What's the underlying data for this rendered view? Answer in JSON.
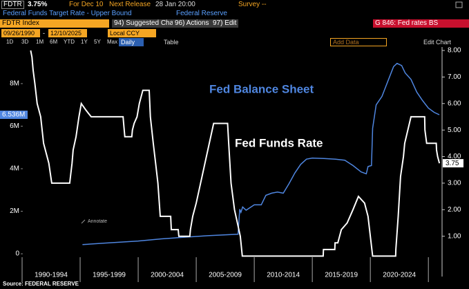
{
  "header": {
    "ticker": "FDTR",
    "price": "3.75%",
    "info": "For Dec 10",
    "next_release": "Next Release",
    "release_date": "28 Jan 20:00",
    "survey": "Survey --",
    "description": "Federal Funds Target Rate - Upper Bound",
    "source_name": "Federal Reserve"
  },
  "toolbar": {
    "security": "FDTR Index",
    "buttons": [
      "94) Suggested Charts",
      "96) Actions",
      "97) Edit"
    ],
    "chart_id": "G 846: Fed rates BS",
    "start_date": "09/26/1990",
    "end_date": "12/10/2025",
    "currency": "Local CCY",
    "periods": [
      "1D",
      "3D",
      "1M",
      "6M",
      "YTD",
      "1Y",
      "5Y",
      "Max"
    ],
    "frequency": "Daily",
    "table": "Table",
    "add_data": "Add Data",
    "edit_chart": "Edit Chart"
  },
  "chart_data": {
    "type": "line",
    "annotations": [
      "Fed Balance Sheet",
      "Fed Funds Rate",
      "Annotate"
    ],
    "xlim": [
      1990,
      2026
    ],
    "xticks": [
      1990,
      1995,
      2000,
      2005,
      2010,
      2015,
      2020,
      2025
    ],
    "x_period_labels": [
      "1990-1994",
      "1995-1999",
      "2000-2004",
      "2005-2009",
      "2010-2014",
      "2015-2019",
      "2020-2024"
    ],
    "ylim": [
      -1070000,
      9720000
    ],
    "yticks": [
      0,
      {
        "value": 2000000,
        "label": "2M"
      },
      {
        "value": 4000000,
        "label": "4M"
      },
      {
        "value": 6000000,
        "label": "6M"
      },
      {
        "value": 8000000,
        "label": "8M"
      }
    ],
    "y2lim": [
      -0.52,
      8.13
    ],
    "y2ticks": [
      {
        "value": 1,
        "label": "1.00"
      },
      {
        "value": 2,
        "label": "2.00"
      },
      {
        "value": 3,
        "label": "3.00"
      },
      {
        "value": 4,
        "label": "4.00"
      },
      {
        "value": 5,
        "label": "5.00"
      },
      {
        "value": 6,
        "label": "6.00"
      },
      {
        "value": 7,
        "label": "7.00"
      },
      {
        "value": 8,
        "label": "8.00"
      }
    ],
    "series": [
      {
        "name": "Fed Balance Sheet",
        "color": "#4f86e0",
        "axis": "y",
        "x": [
          1995.2,
          1997,
          2000,
          2002,
          2004,
          2006,
          2008.6,
          2008.75,
          2008.85,
          2009,
          2009.3,
          2010,
          2010.6,
          2011,
          2011.5,
          2012,
          2012.5,
          2013,
          2013.5,
          2014,
          2014.5,
          2015,
          2016,
          2017,
          2017.8,
          2018.5,
          2019.2,
          2019.65,
          2019.8,
          2020.1,
          2020.2,
          2020.5,
          2021,
          2021.5,
          2022.0,
          2022.3,
          2022.7,
          2023.0,
          2023.5,
          2024,
          2024.5,
          2025,
          2025.5,
          2025.94
        ],
        "values": [
          430000,
          500000,
          600000,
          700000,
          780000,
          850000,
          920000,
          2100000,
          1950000,
          2200000,
          2050000,
          2300000,
          2300000,
          2750000,
          2850000,
          2900000,
          2850000,
          3300000,
          3800000,
          4200000,
          4450000,
          4500000,
          4480000,
          4450000,
          4400000,
          4150000,
          3850000,
          3760000,
          4100000,
          4150000,
          5900000,
          7000000,
          7400000,
          8100000,
          8800000,
          8950000,
          8850000,
          8500000,
          8200000,
          7600000,
          7200000,
          6850000,
          6650000,
          6536000
        ],
        "value_labels": [
          null,
          null,
          null,
          null,
          null,
          null,
          null,
          null,
          null,
          null,
          null,
          null,
          null,
          null,
          null,
          null,
          null,
          null,
          null,
          null,
          null,
          null,
          null,
          null,
          null,
          null,
          null,
          null,
          null,
          null,
          null,
          null,
          null,
          null,
          null,
          null,
          null,
          null,
          null,
          null,
          null,
          null,
          null,
          "6.536M"
        ]
      },
      {
        "name": "Fed Funds Rate",
        "color": "#ffffff",
        "axis": "y2",
        "x": [
          1990.74,
          1990.85,
          1990.95,
          1991.1,
          1991.3,
          1991.6,
          1991.85,
          1992.3,
          1992.55,
          1994.05,
          1994.1,
          1994.3,
          1994.4,
          1994.65,
          1994.9,
          1995.1,
          1995.5,
          1995.95,
          1998.7,
          1998.75,
          1998.85,
          1999.45,
          1999.5,
          1999.65,
          1999.9,
          2000.1,
          2000.4,
          2000.95,
          2001.05,
          2001.3,
          2001.5,
          2001.7,
          2001.9,
          2002.8,
          2002.85,
          2003.45,
          2003.5,
          2004.45,
          2004.5,
          2004.7,
          2005.0,
          2005.5,
          2006.0,
          2006.5,
          2007.7,
          2007.8,
          2008.0,
          2008.3,
          2008.8,
          2008.97,
          2015.94,
          2015.96,
          2016.94,
          2016.96,
          2017.2,
          2017.5,
          2018.0,
          2018.5,
          2018.97,
          2019.5,
          2019.8,
          2020.2,
          2022.18,
          2022.2,
          2022.4,
          2022.6,
          2022.85,
          2022.96,
          2023.5,
          2024.68,
          2024.7,
          2024.85,
          2025.68,
          2025.7,
          2025.8,
          2025.95
        ],
        "values": [
          8.0,
          7.75,
          7.25,
          6.75,
          6.0,
          5.5,
          4.5,
          3.75,
          3.0,
          3.0,
          3.0,
          3.75,
          4.25,
          4.75,
          5.5,
          6.0,
          5.75,
          5.5,
          5.5,
          5.25,
          4.75,
          4.75,
          5.0,
          5.25,
          5.5,
          6.0,
          6.5,
          6.5,
          5.5,
          4.5,
          3.75,
          3.0,
          1.75,
          1.75,
          1.25,
          1.25,
          1.0,
          1.0,
          1.25,
          1.75,
          2.25,
          3.25,
          4.25,
          5.25,
          5.25,
          4.5,
          3.0,
          2.0,
          1.0,
          0.25,
          0.25,
          0.5,
          0.5,
          0.75,
          0.75,
          1.25,
          1.5,
          2.0,
          2.5,
          2.25,
          1.75,
          0.25,
          0.25,
          0.5,
          1.75,
          3.25,
          4.0,
          4.5,
          5.5,
          5.5,
          5.0,
          4.5,
          4.5,
          4.25,
          4.0,
          3.75
        ],
        "value_labels": [
          null,
          null,
          null,
          null,
          null,
          null,
          null,
          null,
          null,
          null,
          null,
          null,
          null,
          null,
          null,
          null,
          null,
          null,
          null,
          null,
          null,
          null,
          null,
          null,
          null,
          null,
          null,
          null,
          null,
          null,
          null,
          null,
          null,
          null,
          null,
          null,
          null,
          null,
          null,
          null,
          null,
          null,
          null,
          null,
          null,
          null,
          null,
          null,
          null,
          null,
          null,
          null,
          null,
          null,
          null,
          null,
          null,
          null,
          null,
          null,
          null,
          null,
          null,
          null,
          null,
          null,
          null,
          null,
          null,
          null,
          null,
          null,
          null,
          null,
          null,
          "3.75"
        ]
      }
    ]
  },
  "footer": {
    "source": "Source: FEDERAL RESERVE"
  }
}
